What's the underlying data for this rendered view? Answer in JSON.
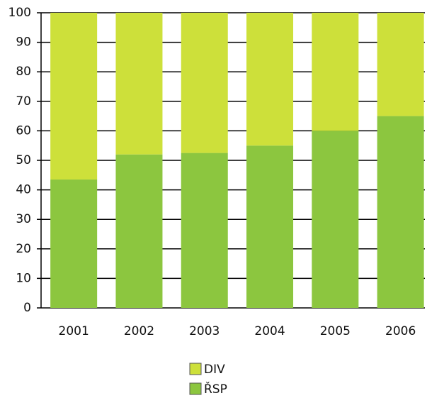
{
  "chart_data": {
    "type": "bar",
    "stacked": true,
    "categories": [
      "2001",
      "2002",
      "2003",
      "2004",
      "2005",
      "2006"
    ],
    "series": [
      {
        "name": "ŘSP",
        "color": "#8cc63f",
        "values": [
          43.5,
          52,
          52.5,
          55,
          60,
          65
        ]
      },
      {
        "name": "DIV",
        "color": "#cde03a",
        "values": [
          56.5,
          48,
          47.5,
          45,
          40,
          35
        ]
      }
    ],
    "ylim": [
      0,
      100
    ],
    "yticks": [
      0,
      10,
      20,
      30,
      40,
      50,
      60,
      70,
      80,
      90,
      100
    ],
    "grid": true,
    "legend": "bottom"
  }
}
